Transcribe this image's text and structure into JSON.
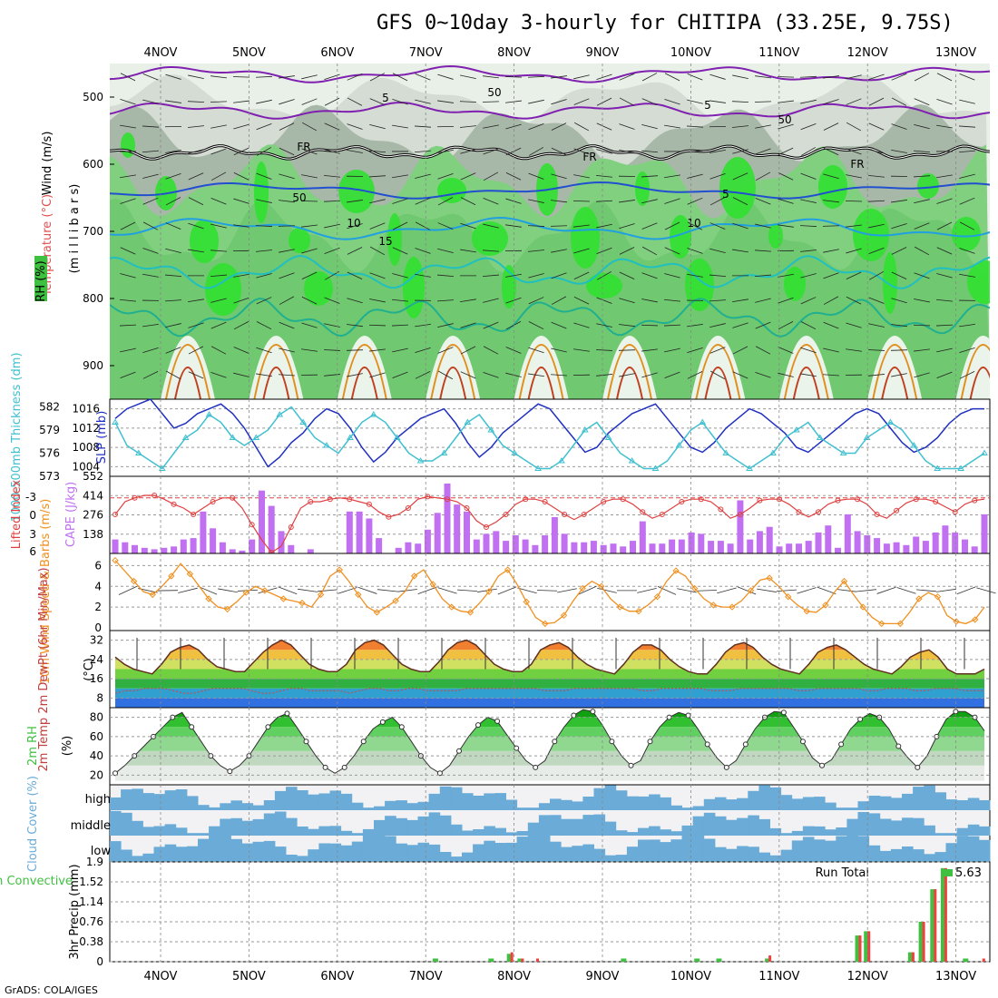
{
  "title": "GFS 0~10day 3-hourly for CHITIPA (33.25E, 9.75S)",
  "credit": "GrADS: COLA/IGES",
  "colors": {
    "temp_warm": "#e06020",
    "temp_mid": "#f0b040",
    "temp_cool": "#a0d040",
    "rh_green": "#40c040",
    "rh_grey": "#c0c8c0",
    "slp": "#2030c0",
    "thickness": "#40c0d0",
    "cape": "#c070f0",
    "li": "#e04040",
    "wind": "#f09020",
    "cloud": "#6aabd8",
    "precip_total": "#40c040",
    "precip_conv": "#f04040"
  },
  "chart_data": {
    "type": "meteogram",
    "x_dates": [
      "4NOV",
      "5NOV",
      "6NOV",
      "7NOV",
      "8NOV",
      "9NOV",
      "10NOV",
      "11NOV",
      "12NOV",
      "13NOV"
    ],
    "panels": [
      {
        "name": "upper-air",
        "type": "heatmap",
        "ylabel": "(m i l l i b a r s)",
        "legend": [
          "Wind (m/s)",
          "Temperature (°C)",
          "RH (%)"
        ],
        "y_ticks": [
          "500",
          "600",
          "700",
          "800",
          "900"
        ],
        "ylim": [
          950,
          450
        ],
        "contour_labels": [
          "5",
          "5",
          "FR",
          "FR",
          "FR",
          "5",
          "10",
          "10",
          "15",
          "50",
          "50",
          "50"
        ]
      },
      {
        "name": "slp-thickness",
        "type": "line",
        "left_label": "1000-500mb Thickness (dm)",
        "right_label": "SLP (mb)",
        "left_ticks": [
          "582",
          "579",
          "576",
          "573"
        ],
        "right_ticks": [
          "1016",
          "1012",
          "1008",
          "1004"
        ],
        "slp_series": [
          1014,
          1016,
          1017,
          1018,
          1015,
          1012,
          1013,
          1015,
          1016,
          1017,
          1015,
          1012,
          1008,
          1004,
          1006,
          1009,
          1011,
          1014,
          1016,
          1015,
          1012,
          1008,
          1005,
          1007,
          1010,
          1012,
          1014,
          1015,
          1016,
          1013,
          1009,
          1006,
          1008,
          1011,
          1013,
          1015,
          1017,
          1016,
          1013,
          1010,
          1007,
          1008,
          1011,
          1013,
          1015,
          1016,
          1017,
          1014,
          1011,
          1008,
          1007,
          1009,
          1012,
          1014,
          1016,
          1015,
          1013,
          1011,
          1008,
          1007,
          1009,
          1011,
          1013,
          1015,
          1016,
          1015,
          1012,
          1009,
          1007,
          1008,
          1010,
          1013,
          1015,
          1016,
          1016
        ],
        "thickness_series": [
          580,
          577,
          576,
          575,
          574,
          576,
          578,
          579,
          581,
          580,
          578,
          577,
          578,
          579,
          581,
          582,
          580,
          578,
          577,
          576,
          578,
          580,
          581,
          580,
          578,
          576,
          575,
          575,
          576,
          578,
          580,
          581,
          579,
          577,
          576,
          575,
          574,
          574,
          575,
          577,
          579,
          580,
          578,
          576,
          575,
          574,
          574,
          575,
          577,
          579,
          580,
          578,
          576,
          575,
          574,
          575,
          576,
          578,
          579,
          580,
          578,
          577,
          576,
          576,
          578,
          579,
          580,
          579,
          577,
          575,
          574,
          574,
          574,
          575,
          576
        ]
      },
      {
        "name": "cape-li",
        "type": "bar",
        "left_label": "Lifted Index",
        "right_label": "CAPE (J/kg)",
        "left_ticks": [
          "-3",
          "0",
          "3",
          "6"
        ],
        "right_ticks": [
          "552",
          "414",
          "276",
          "138"
        ],
        "cape_series": [
          100,
          80,
          60,
          40,
          30,
          40,
          50,
          100,
          110,
          300,
          180,
          80,
          30,
          20,
          100,
          450,
          340,
          160,
          60,
          0,
          30,
          0,
          0,
          0,
          300,
          300,
          250,
          110,
          0,
          40,
          80,
          70,
          170,
          290,
          500,
          350,
          300,
          100,
          140,
          160,
          90,
          130,
          100,
          60,
          130,
          260,
          140,
          80,
          80,
          90,
          60,
          70,
          50,
          90,
          230,
          70,
          70,
          100,
          100,
          150,
          140,
          90,
          90,
          70,
          380,
          100,
          160,
          190,
          50,
          70,
          70,
          90,
          150,
          200,
          40,
          280,
          160,
          130,
          110,
          70,
          80,
          60,
          120,
          90,
          150,
          200,
          150,
          100,
          50,
          280
        ],
        "li_series": [
          0.0,
          -1.0,
          -1.3,
          -1.5,
          -1.5,
          -1.2,
          -0.8,
          -0.5,
          0.0,
          -0.5,
          -1.0,
          -1.3,
          -1.3,
          -0.5,
          0.8,
          2.0,
          3.0,
          2.5,
          1.0,
          -0.5,
          -1.0,
          -1.0,
          -1.2,
          -1.3,
          -1.2,
          -1.0,
          -0.8,
          -0.2,
          0.2,
          0.0,
          -0.5,
          -1.2,
          -1.4,
          -1.3,
          -1.2,
          -1.0,
          -0.5,
          0.5,
          1.0,
          0.6,
          0.0,
          -0.8,
          -1.2,
          -1.2,
          -1.0,
          -0.5,
          0.0,
          0.4,
          0.0,
          -0.5,
          -1.0,
          -1.2,
          -1.2,
          -0.8,
          -0.2,
          0.3,
          0.0,
          -0.5,
          -1.0,
          -1.2,
          -1.2,
          -1.0,
          -0.4,
          0.3,
          0.0,
          -0.5,
          -1.1,
          -1.2,
          -1.2,
          -0.8,
          -0.2,
          0.2,
          -0.2,
          -0.8,
          -1.1,
          -1.2,
          -1.2,
          -0.8,
          0.0,
          0.3,
          -0.3,
          -0.9,
          -1.2,
          -1.2,
          -1.0,
          -0.6,
          -0.2,
          -0.8,
          -1.1,
          -1.2
        ]
      },
      {
        "name": "wind-10m",
        "type": "line",
        "left_label": "10m Wind Speed & Barbs (m/s)",
        "y_ticks": [
          "6",
          "4",
          "2",
          "0"
        ],
        "ylim": [
          0,
          7
        ],
        "series": [
          6.5,
          5.5,
          4.5,
          3.5,
          3.2,
          4.0,
          5.0,
          6.2,
          5.2,
          4.0,
          2.8,
          2.0,
          1.8,
          2.5,
          3.4,
          4.0,
          3.6,
          3.2,
          2.8,
          2.6,
          2.4,
          2.0,
          3.2,
          5.0,
          5.6,
          4.5,
          3.2,
          2.0,
          1.5,
          2.0,
          2.6,
          3.5,
          5.0,
          5.6,
          4.2,
          2.8,
          2.0,
          1.6,
          1.5,
          2.4,
          3.5,
          5.0,
          5.6,
          4.2,
          2.5,
          1.0,
          0.4,
          0.5,
          1.2,
          2.6,
          3.8,
          4.5,
          4.0,
          2.8,
          2.0,
          1.6,
          1.6,
          2.2,
          3.0,
          4.5,
          5.5,
          5.0,
          3.8,
          2.8,
          2.2,
          2.0,
          2.0,
          2.6,
          3.6,
          4.6,
          4.8,
          4.0,
          3.0,
          2.2,
          1.6,
          1.5,
          2.2,
          3.5,
          4.5,
          3.2,
          2.0,
          1.0,
          0.4,
          0.4,
          0.4,
          1.5,
          2.8,
          3.4,
          3.0,
          1.2,
          0.6,
          0.4,
          0.8,
          2.0
        ]
      },
      {
        "name": "temperature-2m",
        "type": "area",
        "left_label": "2m Temp 2m DewPt (6hr Min/Max)",
        "right_label": "(°C)",
        "y_ticks": [
          "32",
          "24",
          "16",
          "8"
        ],
        "ylim": [
          4,
          36
        ],
        "temp_series": [
          25,
          22,
          20,
          19,
          18,
          22,
          27,
          29,
          30,
          28,
          24,
          21,
          20,
          19,
          19,
          23,
          27,
          30,
          32,
          30,
          26,
          22,
          20,
          19,
          19,
          22,
          28,
          31,
          32,
          30,
          26,
          22,
          20,
          19,
          19,
          23,
          28,
          31,
          32,
          30,
          26,
          22,
          20,
          19,
          19,
          22,
          28,
          30,
          31,
          29,
          25,
          22,
          20,
          19,
          18,
          22,
          27,
          30,
          30,
          28,
          24,
          21,
          19,
          18,
          18,
          22,
          27,
          30,
          31,
          29,
          25,
          22,
          20,
          19,
          18,
          22,
          27,
          29,
          30,
          28,
          25,
          22,
          20,
          19,
          18,
          21,
          25,
          27,
          28,
          25,
          20,
          18,
          18,
          18,
          20
        ],
        "dewpoint_series": [
          10,
          11,
          11,
          12,
          12,
          12,
          11,
          10,
          10,
          11,
          12,
          12,
          12,
          12,
          11,
          10,
          10,
          11,
          12,
          12,
          11,
          11,
          11,
          11,
          10,
          11,
          12,
          12,
          11,
          11,
          12,
          12,
          11,
          11,
          11,
          11,
          12,
          12,
          12,
          12,
          12,
          12,
          12,
          12,
          11,
          11,
          11,
          12,
          12,
          12,
          12,
          12,
          12,
          12,
          11,
          11,
          12,
          12,
          12,
          12,
          12,
          11,
          11,
          11,
          12,
          12,
          12,
          12,
          12,
          12,
          11,
          11,
          12,
          12,
          12,
          12,
          12,
          11,
          11,
          12,
          12,
          12,
          11,
          11,
          12,
          12,
          12,
          11,
          11,
          11
        ]
      },
      {
        "name": "rh-2m",
        "type": "area",
        "left_label": "2m RH",
        "right_label": "(%)",
        "y_ticks": [
          "80",
          "60",
          "40",
          "20"
        ],
        "ylim": [
          10,
          90
        ],
        "series": [
          22,
          30,
          40,
          50,
          60,
          70,
          80,
          85,
          70,
          55,
          40,
          30,
          24,
          30,
          40,
          55,
          70,
          80,
          84,
          70,
          55,
          40,
          28,
          22,
          28,
          40,
          55,
          68,
          75,
          80,
          70,
          55,
          40,
          28,
          22,
          30,
          45,
          60,
          72,
          80,
          76,
          62,
          48,
          35,
          28,
          35,
          55,
          70,
          82,
          88,
          86,
          72,
          55,
          40,
          30,
          35,
          55,
          70,
          80,
          85,
          82,
          68,
          52,
          38,
          28,
          35,
          52,
          68,
          80,
          86,
          85,
          70,
          55,
          38,
          30,
          36,
          52,
          68,
          78,
          84,
          80,
          68,
          50,
          38,
          28,
          40,
          60,
          78,
          86,
          86,
          80,
          66
        ]
      },
      {
        "name": "cloud-cover",
        "type": "heatmap",
        "left_label": "Cloud Cover (%)",
        "row_labels": [
          "high",
          "middle",
          "low"
        ]
      },
      {
        "name": "precip-3hr",
        "type": "bar",
        "left_label": "Total / Rain Convective",
        "right_label": "3hr Precip (mm)",
        "y_ticks": [
          "1.9",
          "1.52",
          "1.14",
          "0.76",
          "0.38",
          "0"
        ],
        "ylim": [
          0,
          1.9
        ],
        "run_total_label": "Run Total",
        "run_total": "5.63",
        "bars": [
          {
            "date_index": 3.12,
            "total": 0.06,
            "conv": 0.0
          },
          {
            "date_index": 3.75,
            "total": 0.06,
            "conv": 0.0
          },
          {
            "date_index": 3.96,
            "total": 0.15,
            "conv": 0.18
          },
          {
            "date_index": 4.08,
            "total": 0.06,
            "conv": 0.06
          },
          {
            "date_index": 4.25,
            "total": 0.0,
            "conv": 0.06
          },
          {
            "date_index": 5.25,
            "total": 0.06,
            "conv": 0.0
          },
          {
            "date_index": 6.08,
            "total": 0.06,
            "conv": 0.0
          },
          {
            "date_index": 6.33,
            "total": 0.06,
            "conv": 0.0
          },
          {
            "date_index": 6.88,
            "total": 0.06,
            "conv": 0.12
          },
          {
            "date_index": 7.9,
            "total": 0.5,
            "conv": 0.5
          },
          {
            "date_index": 8.0,
            "total": 0.58,
            "conv": 0.58
          },
          {
            "date_index": 8.5,
            "total": 0.18,
            "conv": 0.18
          },
          {
            "date_index": 8.62,
            "total": 0.76,
            "conv": 0.76
          },
          {
            "date_index": 8.75,
            "total": 1.38,
            "conv": 1.38
          },
          {
            "date_index": 8.87,
            "total": 1.78,
            "conv": 1.78
          },
          {
            "date_index": 9.12,
            "total": 0.06,
            "conv": 0.0
          },
          {
            "date_index": 9.3,
            "total": 0.0,
            "conv": 0.06
          }
        ]
      }
    ]
  }
}
